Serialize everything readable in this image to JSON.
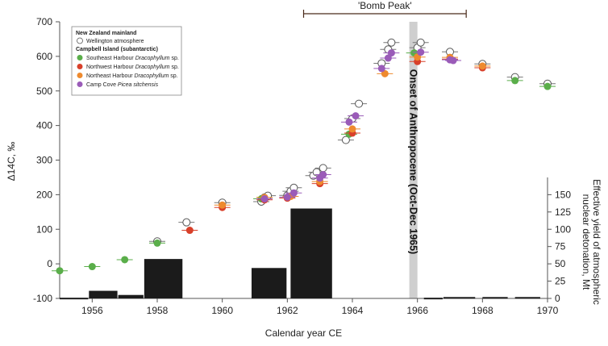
{
  "chart_data": {
    "type": "scatter",
    "xlabel": "Calendar year CE",
    "ylabel_left": "Δ14C, ‰",
    "ylabel_right": [
      "Effective yield of atmospheric",
      "nuclear detonation, Mt"
    ],
    "xlim": [
      1955,
      1970
    ],
    "ylim_left": [
      -100,
      700
    ],
    "ylim_right": [
      0,
      175
    ],
    "x_ticks": [
      1956,
      1958,
      1960,
      1962,
      1964,
      1966,
      1968,
      1970
    ],
    "y_ticks_left": [
      -100,
      0,
      100,
      200,
      300,
      400,
      500,
      600,
      700
    ],
    "y_ticks_right": [
      0,
      25,
      50,
      75,
      100,
      125,
      150
    ],
    "bomb_peak": {
      "label": "'Bomb Peak'",
      "x_start": 1962.5,
      "x_end": 1967.5
    },
    "anthropocene": {
      "label": "Onset of Anthropocene (Oct-Dec 1965)",
      "x_start": 1965.75,
      "x_end": 1966.0
    },
    "legend": {
      "group1": "New Zealand mainland",
      "group2": "Campbell Island (subantarctic)",
      "entries": [
        {
          "label": "Wellington atmosphere",
          "color": "#ffffff",
          "stroke": "#555555"
        },
        {
          "label": "Southeast Harbour",
          "italic": "Dracophyllum",
          "suffix": " sp.",
          "color": "#5aae4a"
        },
        {
          "label": "Northwest Harbour",
          "italic": "Dracophyllum",
          "suffix": " sp.",
          "color": "#d8402a"
        },
        {
          "label": "Northeast Harbour",
          "italic": "Dracophyllum",
          "suffix": " sp.",
          "color": "#ee8a2e"
        },
        {
          "label": "Camp Cove",
          "italic": "Picea sitchensis",
          "suffix": "",
          "color": "#9a5bb8"
        }
      ]
    },
    "yield_bars": [
      {
        "x_start": 1955.0,
        "x_end": 1955.9,
        "value": 1
      },
      {
        "x_start": 1955.9,
        "x_end": 1956.8,
        "value": 11
      },
      {
        "x_start": 1956.8,
        "x_end": 1957.6,
        "value": 5
      },
      {
        "x_start": 1957.6,
        "x_end": 1958.8,
        "value": 57
      },
      {
        "x_start": 1960.9,
        "x_end": 1962.0,
        "value": 44
      },
      {
        "x_start": 1962.1,
        "x_end": 1963.4,
        "value": 130
      },
      {
        "x_start": 1966.2,
        "x_end": 1966.8,
        "value": 1
      },
      {
        "x_start": 1966.8,
        "x_end": 1967.8,
        "value": 2
      },
      {
        "x_start": 1968.0,
        "x_end": 1968.8,
        "value": 2
      },
      {
        "x_start": 1969.0,
        "x_end": 1969.8,
        "value": 2
      }
    ],
    "series": [
      {
        "name": "Wellington atmosphere",
        "points": [
          [
            1958.0,
            65
          ],
          [
            1958.9,
            120
          ],
          [
            1960.0,
            177
          ],
          [
            1961.2,
            180
          ],
          [
            1961.3,
            192
          ],
          [
            1961.4,
            197
          ],
          [
            1962.0,
            198
          ],
          [
            1962.1,
            210
          ],
          [
            1962.2,
            220
          ],
          [
            1962.8,
            255
          ],
          [
            1962.9,
            265
          ],
          [
            1963.1,
            277
          ],
          [
            1963.8,
            358
          ],
          [
            1964.0,
            420
          ],
          [
            1964.2,
            463
          ],
          [
            1964.9,
            580
          ],
          [
            1965.1,
            620
          ],
          [
            1965.2,
            640
          ],
          [
            1966.0,
            625
          ],
          [
            1966.1,
            640
          ],
          [
            1967.0,
            613
          ],
          [
            1968.0,
            578
          ],
          [
            1969.0,
            540
          ],
          [
            1970.0,
            521
          ]
        ]
      },
      {
        "name": "Southeast Harbour",
        "points": [
          [
            1955.0,
            -20
          ],
          [
            1956.0,
            -8
          ],
          [
            1957.0,
            12
          ],
          [
            1958.0,
            60
          ],
          [
            1961.2,
            188
          ],
          [
            1963.9,
            375
          ],
          [
            1965.9,
            610
          ],
          [
            1969.0,
            530
          ],
          [
            1970.0,
            513
          ]
        ]
      },
      {
        "name": "Northwest Harbour",
        "points": [
          [
            1959.0,
            97
          ],
          [
            1960.0,
            163
          ],
          [
            1961.3,
            185
          ],
          [
            1962.0,
            190
          ],
          [
            1963.0,
            232
          ],
          [
            1964.0,
            378
          ],
          [
            1966.0,
            585
          ],
          [
            1967.0,
            592
          ],
          [
            1968.0,
            567
          ]
        ]
      },
      {
        "name": "Northeast Harbour",
        "points": [
          [
            1960.0,
            170
          ],
          [
            1961.3,
            192
          ],
          [
            1962.1,
            195
          ],
          [
            1963.0,
            238
          ],
          [
            1964.0,
            390
          ],
          [
            1965.0,
            550
          ],
          [
            1966.0,
            598
          ],
          [
            1967.0,
            597
          ],
          [
            1968.0,
            572
          ]
        ]
      },
      {
        "name": "Camp Cove",
        "points": [
          [
            1961.3,
            188
          ],
          [
            1962.0,
            193
          ],
          [
            1962.2,
            205
          ],
          [
            1963.0,
            248
          ],
          [
            1963.1,
            258
          ],
          [
            1963.9,
            410
          ],
          [
            1964.1,
            428
          ],
          [
            1964.9,
            565
          ],
          [
            1965.1,
            595
          ],
          [
            1965.2,
            610
          ],
          [
            1966.1,
            612
          ],
          [
            1967.0,
            590
          ],
          [
            1967.1,
            588
          ]
        ]
      }
    ]
  }
}
